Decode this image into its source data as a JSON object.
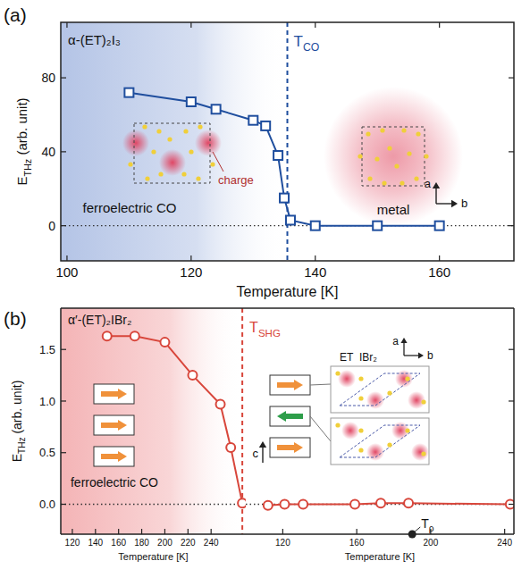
{
  "chart_data": [
    {
      "type": "line",
      "panel_label": "(a)",
      "title": "α-(ET)₂I₃",
      "xlabel": "Temperature [K]",
      "ylabel": [
        "E",
        {
          "sub": "THz"
        },
        " (arb. unit)"
      ],
      "x": [
        110,
        120,
        124,
        130,
        132,
        134,
        135,
        136,
        140,
        150,
        160
      ],
      "series": [
        {
          "color": "#1f4e9e",
          "marker": "square",
          "line_style": "solid",
          "values": [
            72,
            67,
            63,
            57,
            54,
            38,
            15,
            3,
            0,
            0,
            0
          ]
        }
      ],
      "xlim": [
        99,
        172
      ],
      "xticks": [
        100,
        120,
        140,
        160
      ],
      "ylim": [
        -19,
        110
      ],
      "yticks": [
        0,
        40,
        80
      ],
      "transition": {
        "label": [
          "T",
          {
            "sub": "CO"
          }
        ],
        "x": 135.5
      },
      "annotations": [
        "ferroelectric CO",
        "metal",
        "charge",
        "a",
        "b"
      ]
    },
    {
      "type": "line",
      "panel_label": "(b)",
      "title": "α′-(ET)₂IBr₂",
      "xlabel": "Temperature [K]",
      "ylabel": [
        "E",
        {
          "sub": "THz"
        },
        " (arb. unit)"
      ],
      "x": [
        150,
        174,
        200,
        224,
        248,
        257,
        267
      ],
      "series": [
        {
          "color": "#d8463b",
          "marker": "circle",
          "line_style": "solid",
          "values": [
            1.63,
            1.63,
            1.57,
            1.25,
            0.97,
            0.55,
            0.01
          ]
        }
      ],
      "xlim": [
        110,
        270
      ],
      "xticks": [
        120,
        140,
        160,
        180,
        200,
        220,
        240
      ],
      "ylim": [
        -0.29,
        1.9
      ],
      "yticks": [
        {
          "value": 0,
          "label": "0.0"
        },
        0.5,
        {
          "value": 1,
          "label": "1.0"
        },
        1.5
      ],
      "transition": {
        "label": [
          "T",
          {
            "sub": "SHG"
          }
        ],
        "x": 267
      },
      "annotations": [
        "ferroelectric CO"
      ]
    },
    {
      "type": "line",
      "xlabel": "Temperature [K]",
      "x": [
        112,
        121,
        131,
        159,
        173,
        188,
        243
      ],
      "series": [
        {
          "color": "#d8463b",
          "marker": "circle",
          "line_style": "solid",
          "values": [
            -0.01,
            0,
            0,
            0,
            0.01,
            0.01,
            0
          ]
        }
      ],
      "xlim": [
        100,
        245
      ],
      "xticks": [
        120,
        160,
        200,
        240
      ],
      "ylim": [
        -0.29,
        1.9
      ],
      "yticks": [
        {
          "value": 0,
          "label": "0.0"
        },
        0.5,
        {
          "value": 1,
          "label": "1.0"
        },
        1.5
      ],
      "tick_labels": "x",
      "point": {
        "label": [
          "T",
          {
            "sub": "ρ"
          }
        ],
        "x": 190
      },
      "annotations": [
        "ET",
        "IBr₂",
        "a",
        "b",
        "c"
      ]
    }
  ]
}
